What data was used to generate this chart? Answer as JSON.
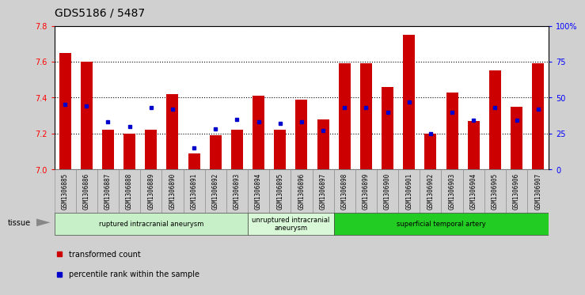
{
  "title": "GDS5186 / 5487",
  "samples": [
    "GSM1306885",
    "GSM1306886",
    "GSM1306887",
    "GSM1306888",
    "GSM1306889",
    "GSM1306890",
    "GSM1306891",
    "GSM1306892",
    "GSM1306893",
    "GSM1306894",
    "GSM1306895",
    "GSM1306896",
    "GSM1306897",
    "GSM1306898",
    "GSM1306899",
    "GSM1306900",
    "GSM1306901",
    "GSM1306902",
    "GSM1306903",
    "GSM1306904",
    "GSM1306905",
    "GSM1306906",
    "GSM1306907"
  ],
  "transformed_count": [
    7.65,
    7.6,
    7.22,
    7.2,
    7.22,
    7.42,
    7.09,
    7.19,
    7.22,
    7.41,
    7.22,
    7.39,
    7.28,
    7.59,
    7.59,
    7.46,
    7.75,
    7.2,
    7.43,
    7.27,
    7.55,
    7.35,
    7.59
  ],
  "percentile_rank": [
    45,
    44,
    33,
    30,
    43,
    42,
    15,
    28,
    35,
    33,
    32,
    33,
    27,
    43,
    43,
    40,
    47,
    25,
    40,
    34,
    43,
    34,
    42
  ],
  "bar_color": "#cc0000",
  "percentile_color": "#0000cc",
  "ymin": 7.0,
  "ymax": 7.8,
  "y_ticks": [
    7.0,
    7.2,
    7.4,
    7.6,
    7.8
  ],
  "right_yticks": [
    0,
    25,
    50,
    75,
    100
  ],
  "right_ytick_labels": [
    "0",
    "25",
    "50",
    "75",
    "100%"
  ],
  "groups": [
    {
      "label": "ruptured intracranial aneurysm",
      "start": 0,
      "end": 9,
      "color": "#c8f0c8"
    },
    {
      "label": "unruptured intracranial\naneurysm",
      "start": 9,
      "end": 13,
      "color": "#d8f8d8"
    },
    {
      "label": "superficial temporal artery",
      "start": 13,
      "end": 23,
      "color": "#22cc22"
    }
  ],
  "xtick_bg_color": "#d0d0d0",
  "background_color": "#d0d0d0",
  "plot_bg_color": "#ffffff",
  "title_fontsize": 10,
  "tick_label_fontsize": 5.5,
  "bar_width": 0.55
}
